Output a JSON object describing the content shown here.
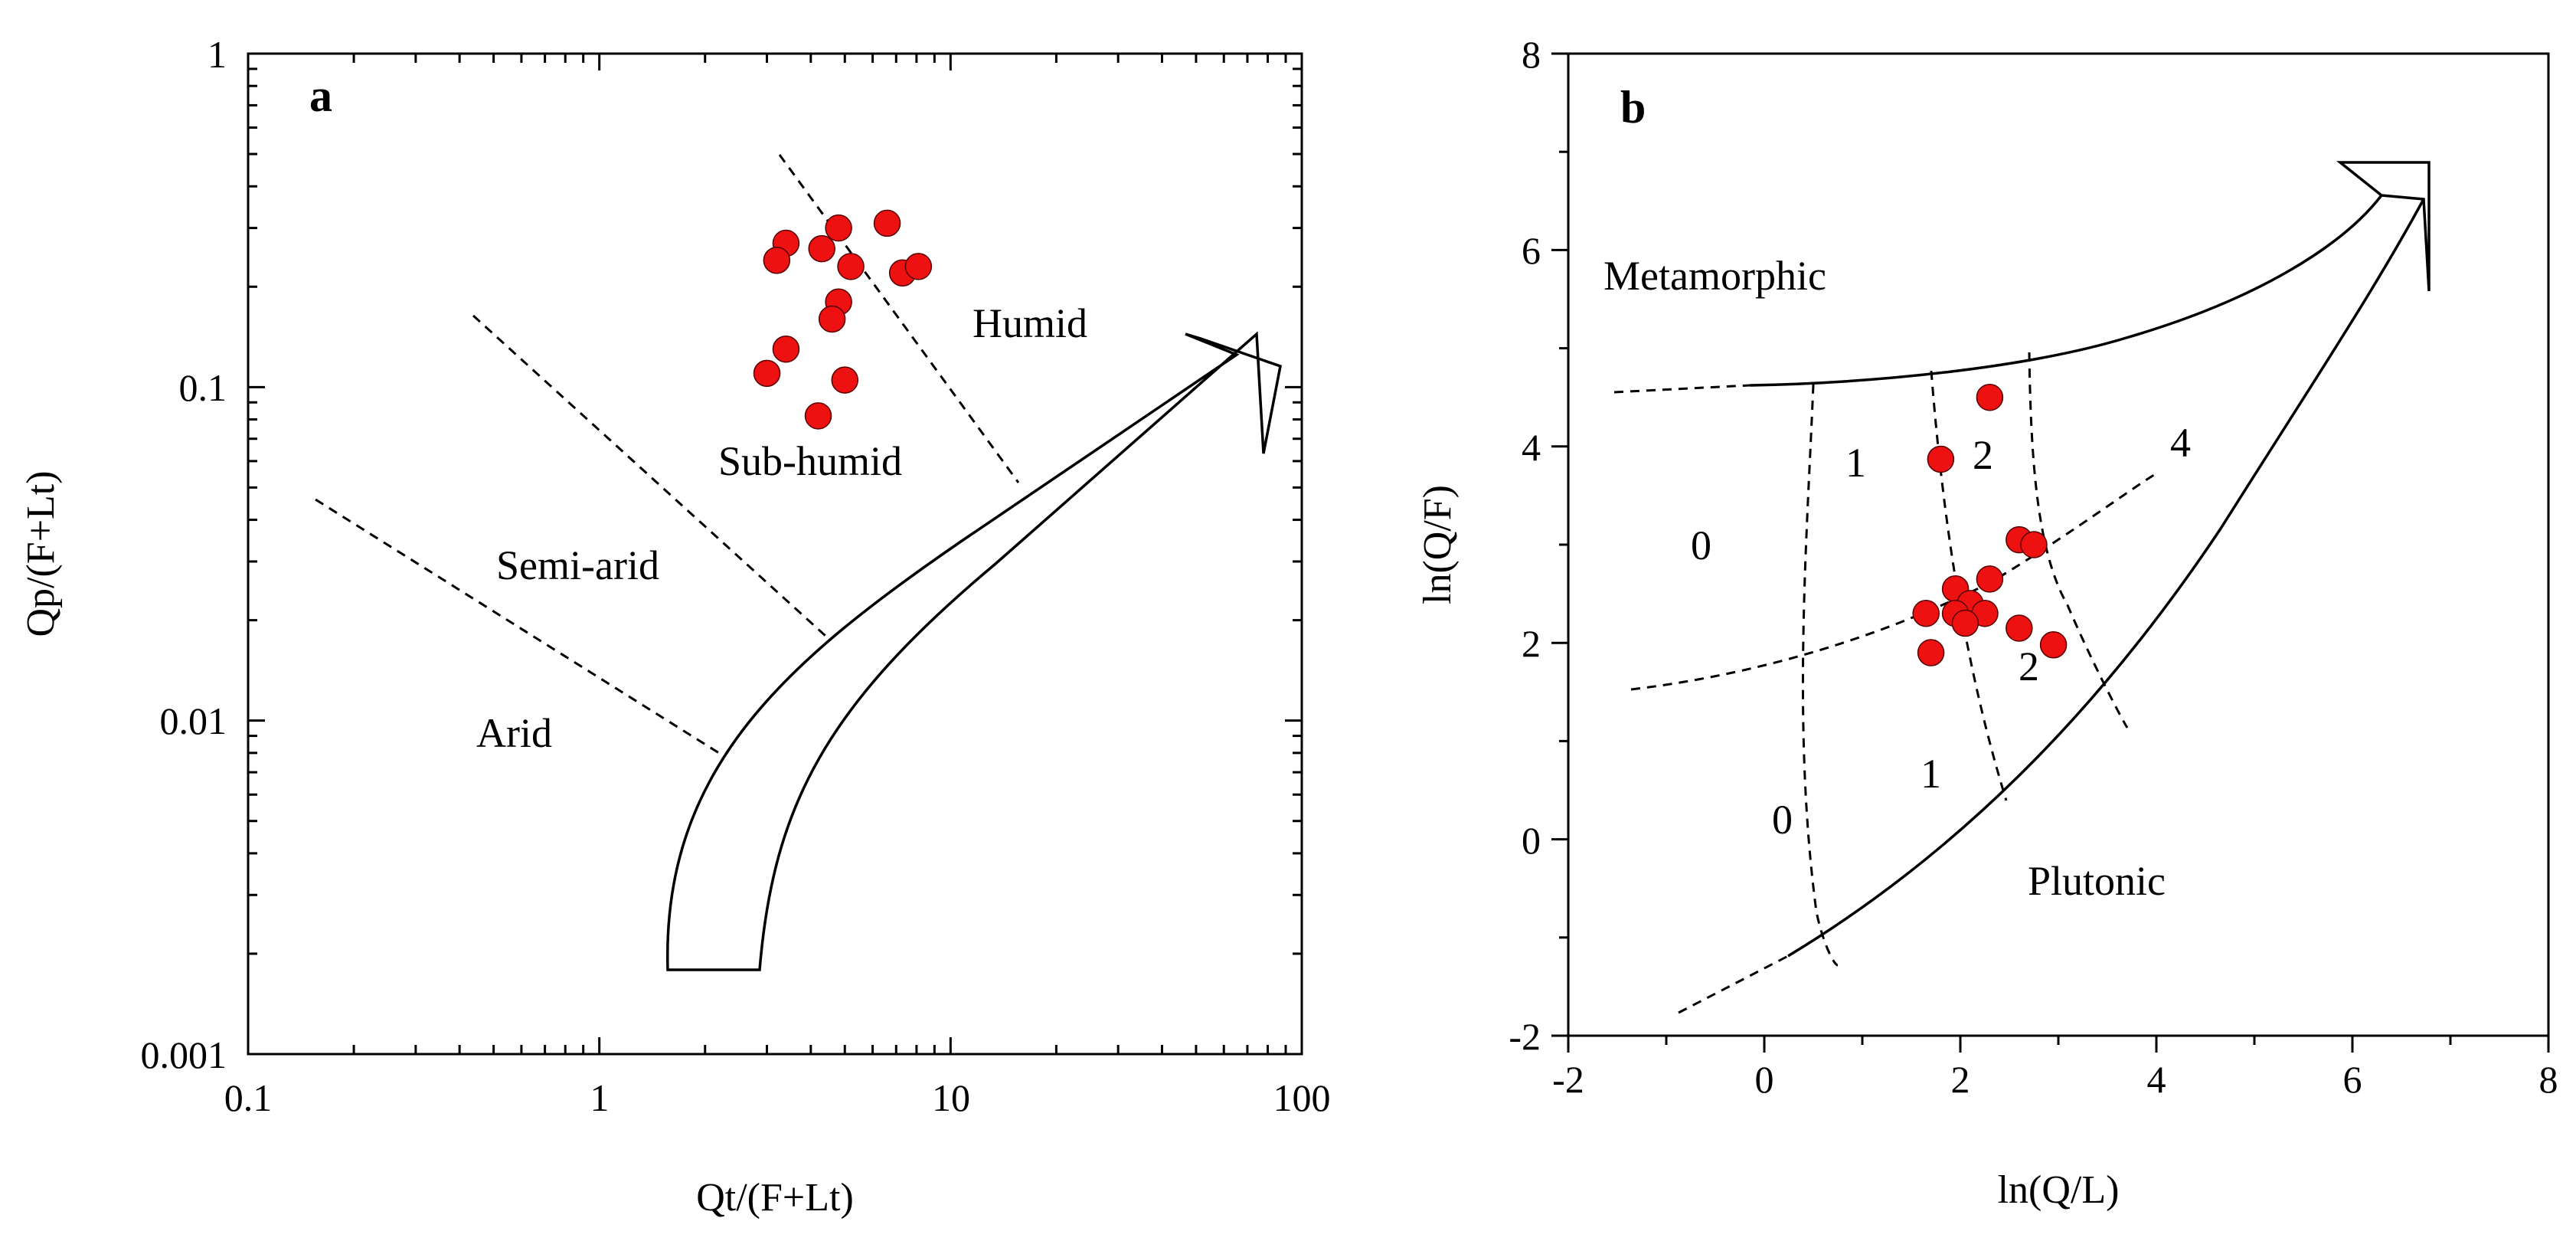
{
  "chart_data": [
    {
      "type": "scatter",
      "panel": "a",
      "title": "",
      "xlabel": "Qt/(F+Lt)",
      "ylabel": "Qp/(F+Lt)",
      "xscale": "log",
      "yscale": "log",
      "xlim": [
        0.1,
        100
      ],
      "ylim": [
        0.001,
        1
      ],
      "xtick_labels": [
        "0.1",
        "1",
        "10",
        "100"
      ],
      "ytick_labels": [
        "0.001",
        "0.01",
        "0.1",
        "1"
      ],
      "fields": [
        "Arid",
        "Semi-arid",
        "Sub-humid",
        "Humid"
      ],
      "series": [
        {
          "name": "samples",
          "points": [
            {
              "x": 3.4,
              "y": 0.27
            },
            {
              "x": 3.2,
              "y": 0.24
            },
            {
              "x": 4.3,
              "y": 0.26
            },
            {
              "x": 4.8,
              "y": 0.3
            },
            {
              "x": 5.2,
              "y": 0.23
            },
            {
              "x": 6.6,
              "y": 0.31
            },
            {
              "x": 7.3,
              "y": 0.22
            },
            {
              "x": 8.1,
              "y": 0.23
            },
            {
              "x": 4.8,
              "y": 0.18
            },
            {
              "x": 4.6,
              "y": 0.16
            },
            {
              "x": 3.4,
              "y": 0.13
            },
            {
              "x": 3.0,
              "y": 0.11
            },
            {
              "x": 5.0,
              "y": 0.105
            },
            {
              "x": 4.2,
              "y": 0.082
            }
          ]
        }
      ]
    },
    {
      "type": "scatter",
      "panel": "b",
      "title": "",
      "xlabel": "ln(Q/L)",
      "ylabel": "ln(Q/F)",
      "xlim": [
        -2,
        8
      ],
      "ylim": [
        -2,
        8
      ],
      "xtick_labels": [
        "-2",
        "0",
        "2",
        "4",
        "6",
        "8"
      ],
      "ytick_labels": [
        "-2",
        "0",
        "2",
        "4",
        "6",
        "8"
      ],
      "fields": [
        "Metamorphic",
        "Plutonic"
      ],
      "zone_labels": [
        "0",
        "1",
        "2",
        "4",
        "0",
        "1",
        "2"
      ],
      "series": [
        {
          "name": "samples",
          "points": [
            {
              "x": 2.3,
              "y": 4.5
            },
            {
              "x": 1.8,
              "y": 3.87
            },
            {
              "x": 2.6,
              "y": 3.05
            },
            {
              "x": 2.75,
              "y": 3.0
            },
            {
              "x": 2.3,
              "y": 2.65
            },
            {
              "x": 1.95,
              "y": 2.55
            },
            {
              "x": 2.1,
              "y": 2.4
            },
            {
              "x": 1.65,
              "y": 2.3
            },
            {
              "x": 2.25,
              "y": 2.3
            },
            {
              "x": 1.95,
              "y": 2.3
            },
            {
              "x": 2.05,
              "y": 2.2
            },
            {
              "x": 2.6,
              "y": 2.15
            },
            {
              "x": 1.7,
              "y": 1.9
            },
            {
              "x": 2.95,
              "y": 1.98
            }
          ]
        }
      ]
    }
  ]
}
